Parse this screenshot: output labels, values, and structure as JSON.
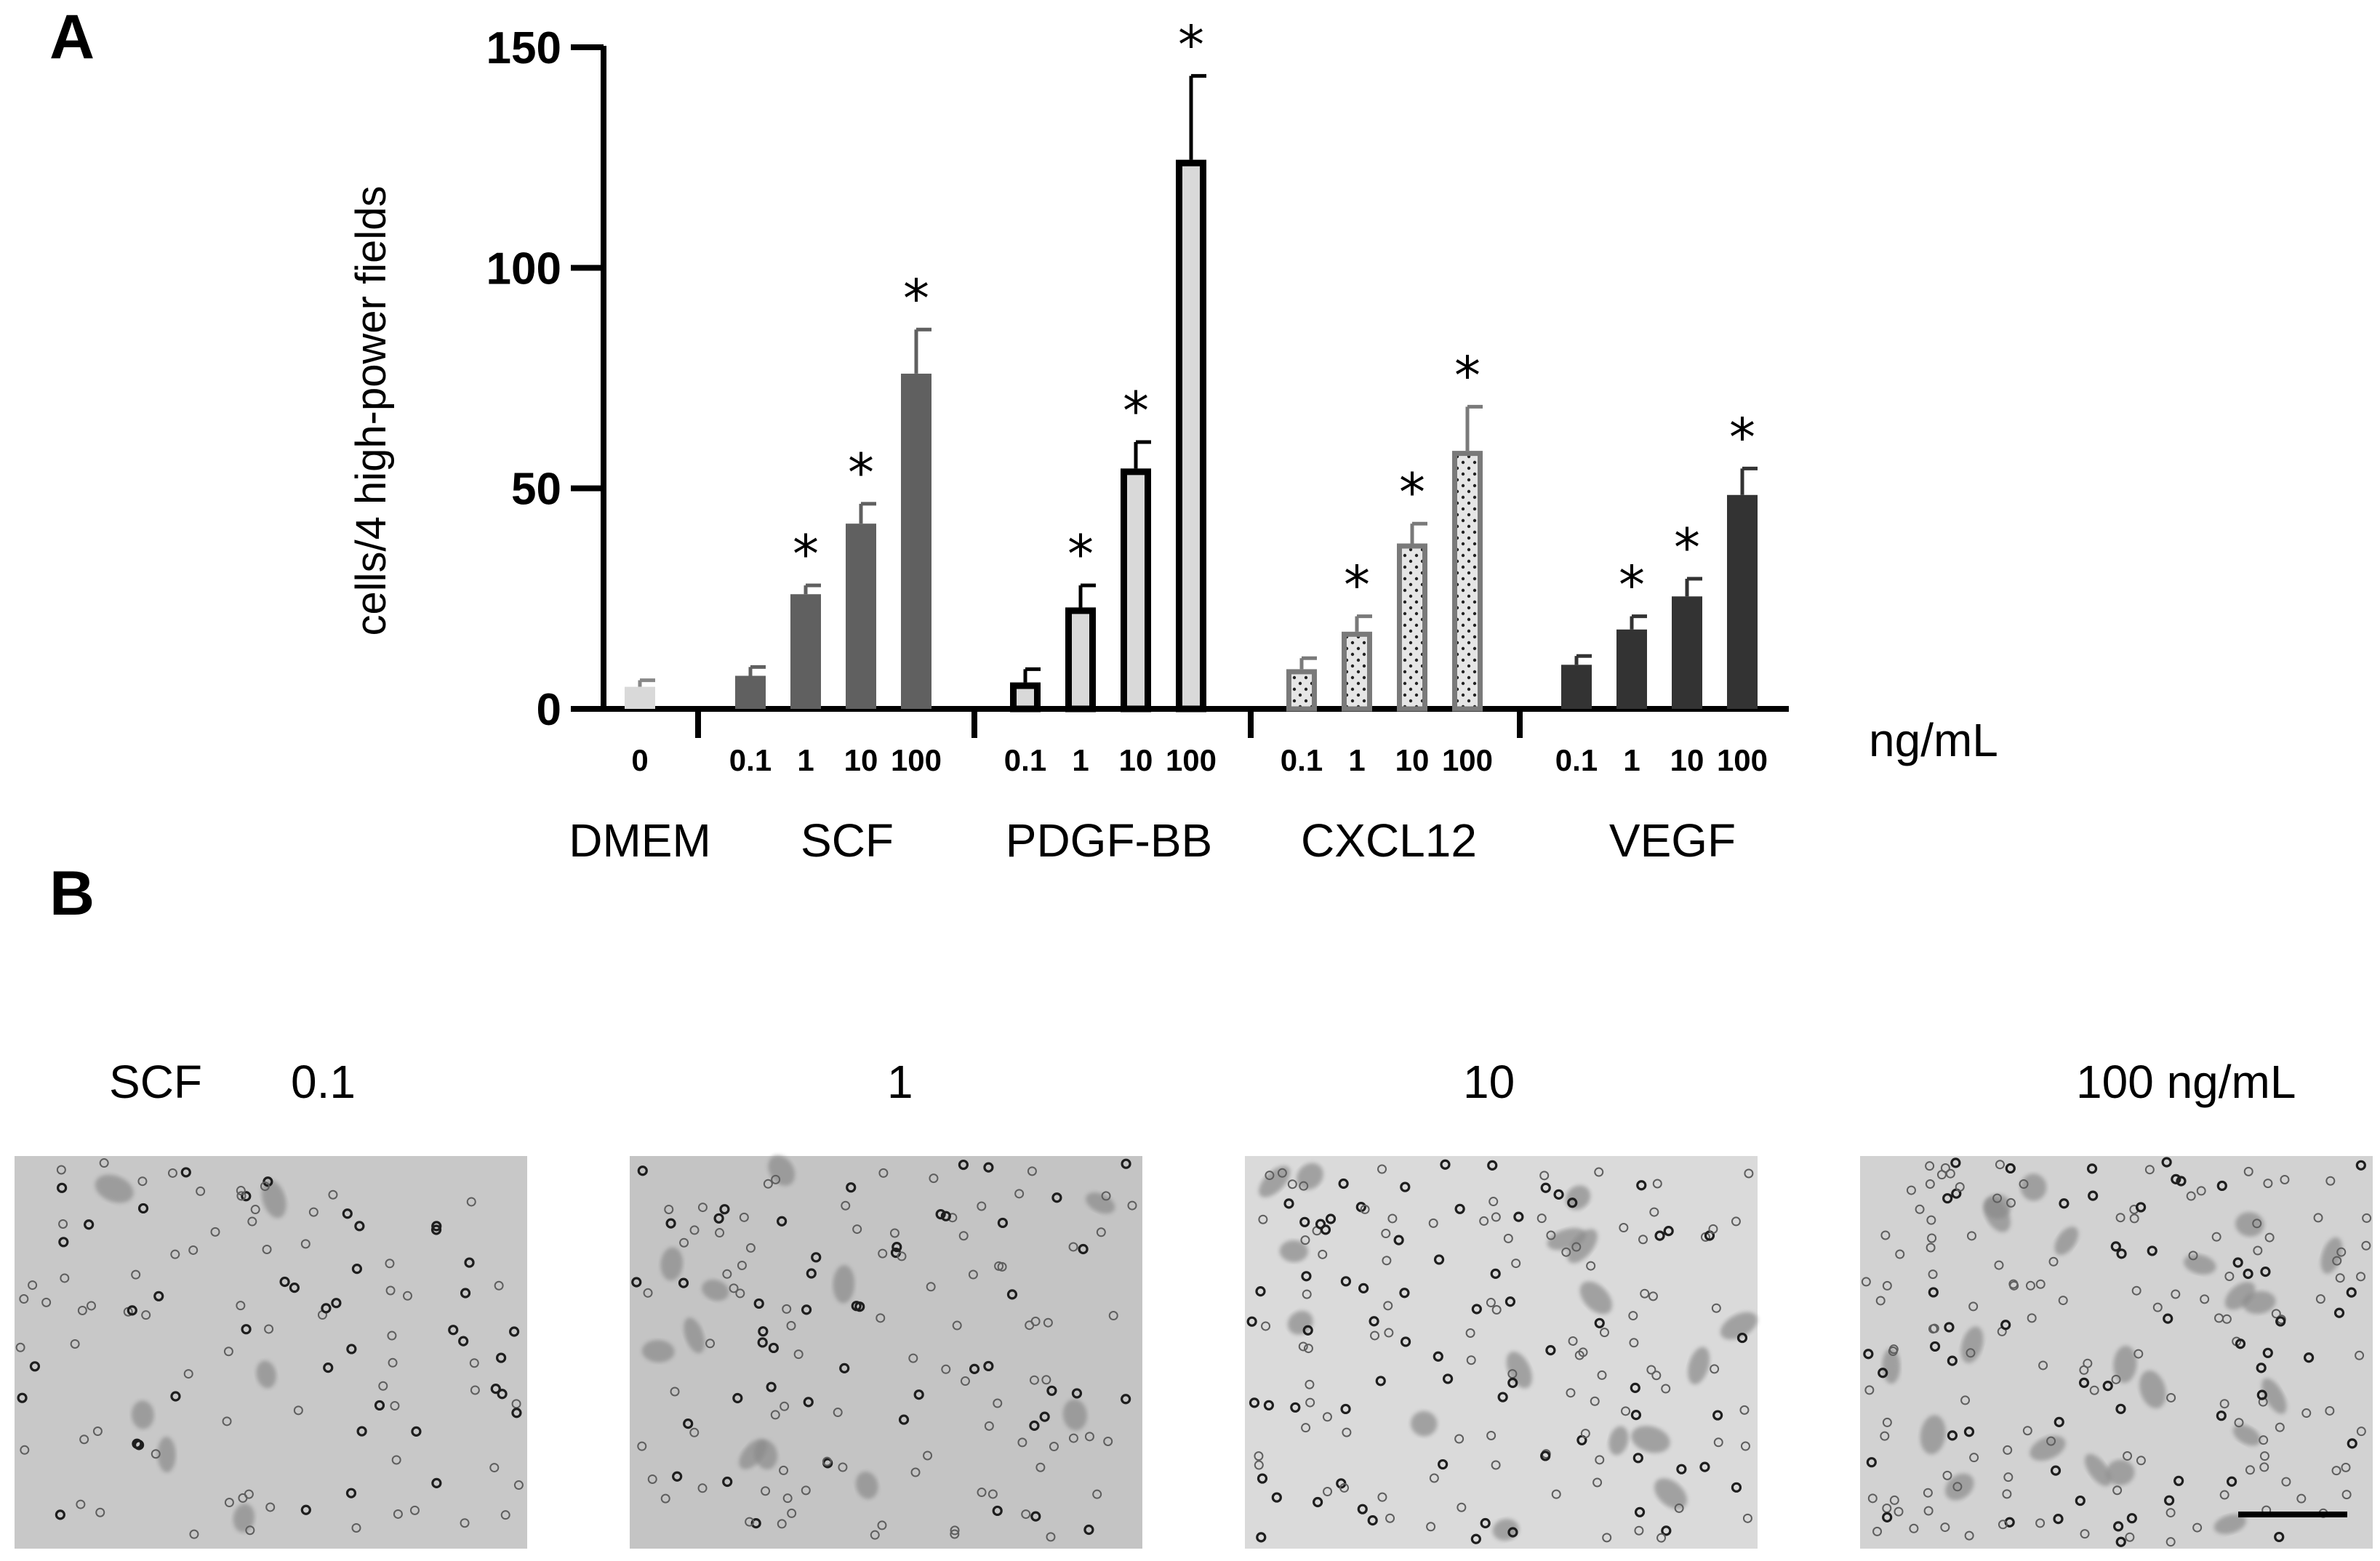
{
  "panels": {
    "a": "A",
    "b": "B"
  },
  "chart_data": {
    "type": "bar",
    "ylabel": "cells/4 high-power fields",
    "xlabel": "ng/mL",
    "ylim": [
      0,
      150
    ],
    "yticks": [
      0,
      50,
      100,
      150
    ],
    "significance_marker": "*",
    "groups": [
      {
        "name": "DMEM",
        "fill": "#d9d9d9",
        "stroke": "#bfbfbf",
        "pattern": "solid",
        "doses": [
          "0"
        ],
        "values": [
          5
        ],
        "errors": [
          1.5
        ],
        "significant": [
          false
        ]
      },
      {
        "name": "SCF",
        "fill": "#606060",
        "stroke": "#606060",
        "pattern": "solid",
        "doses": [
          "0.1",
          "1",
          "10",
          "100"
        ],
        "values": [
          7.5,
          26,
          42,
          76
        ],
        "errors": [
          2,
          2,
          4.5,
          10
        ],
        "significant": [
          false,
          true,
          true,
          true
        ]
      },
      {
        "name": "PDGF-BB",
        "fill": "#d9d9d9",
        "stroke": "#000000",
        "pattern": "outlined",
        "doses": [
          "0.1",
          "1",
          "10",
          "100"
        ],
        "values": [
          6,
          23,
          54.5,
          124.5
        ],
        "errors": [
          3,
          5,
          6,
          19
        ],
        "significant": [
          false,
          true,
          true,
          true
        ]
      },
      {
        "name": "CXCL12",
        "fill": "#e6e6e6",
        "stroke": "#7a7a7a",
        "pattern": "dotted",
        "doses": [
          "0.1",
          "1",
          "10",
          "100"
        ],
        "values": [
          9,
          17.5,
          37.5,
          58.5
        ],
        "errors": [
          2.5,
          3.5,
          4.5,
          10
        ],
        "significant": [
          false,
          true,
          true,
          true
        ]
      },
      {
        "name": "VEGF",
        "fill": "#333333",
        "stroke": "#333333",
        "pattern": "solid",
        "doses": [
          "0.1",
          "1",
          "10",
          "100"
        ],
        "values": [
          10,
          18,
          25.5,
          48.5
        ],
        "errors": [
          2,
          3,
          4,
          6
        ],
        "significant": [
          false,
          true,
          true,
          true
        ]
      }
    ]
  },
  "micrographs": {
    "prefix": "SCF",
    "labels": [
      "0.1",
      "1",
      "10",
      "100 ng/mL"
    ],
    "has_scale_bar": true
  }
}
